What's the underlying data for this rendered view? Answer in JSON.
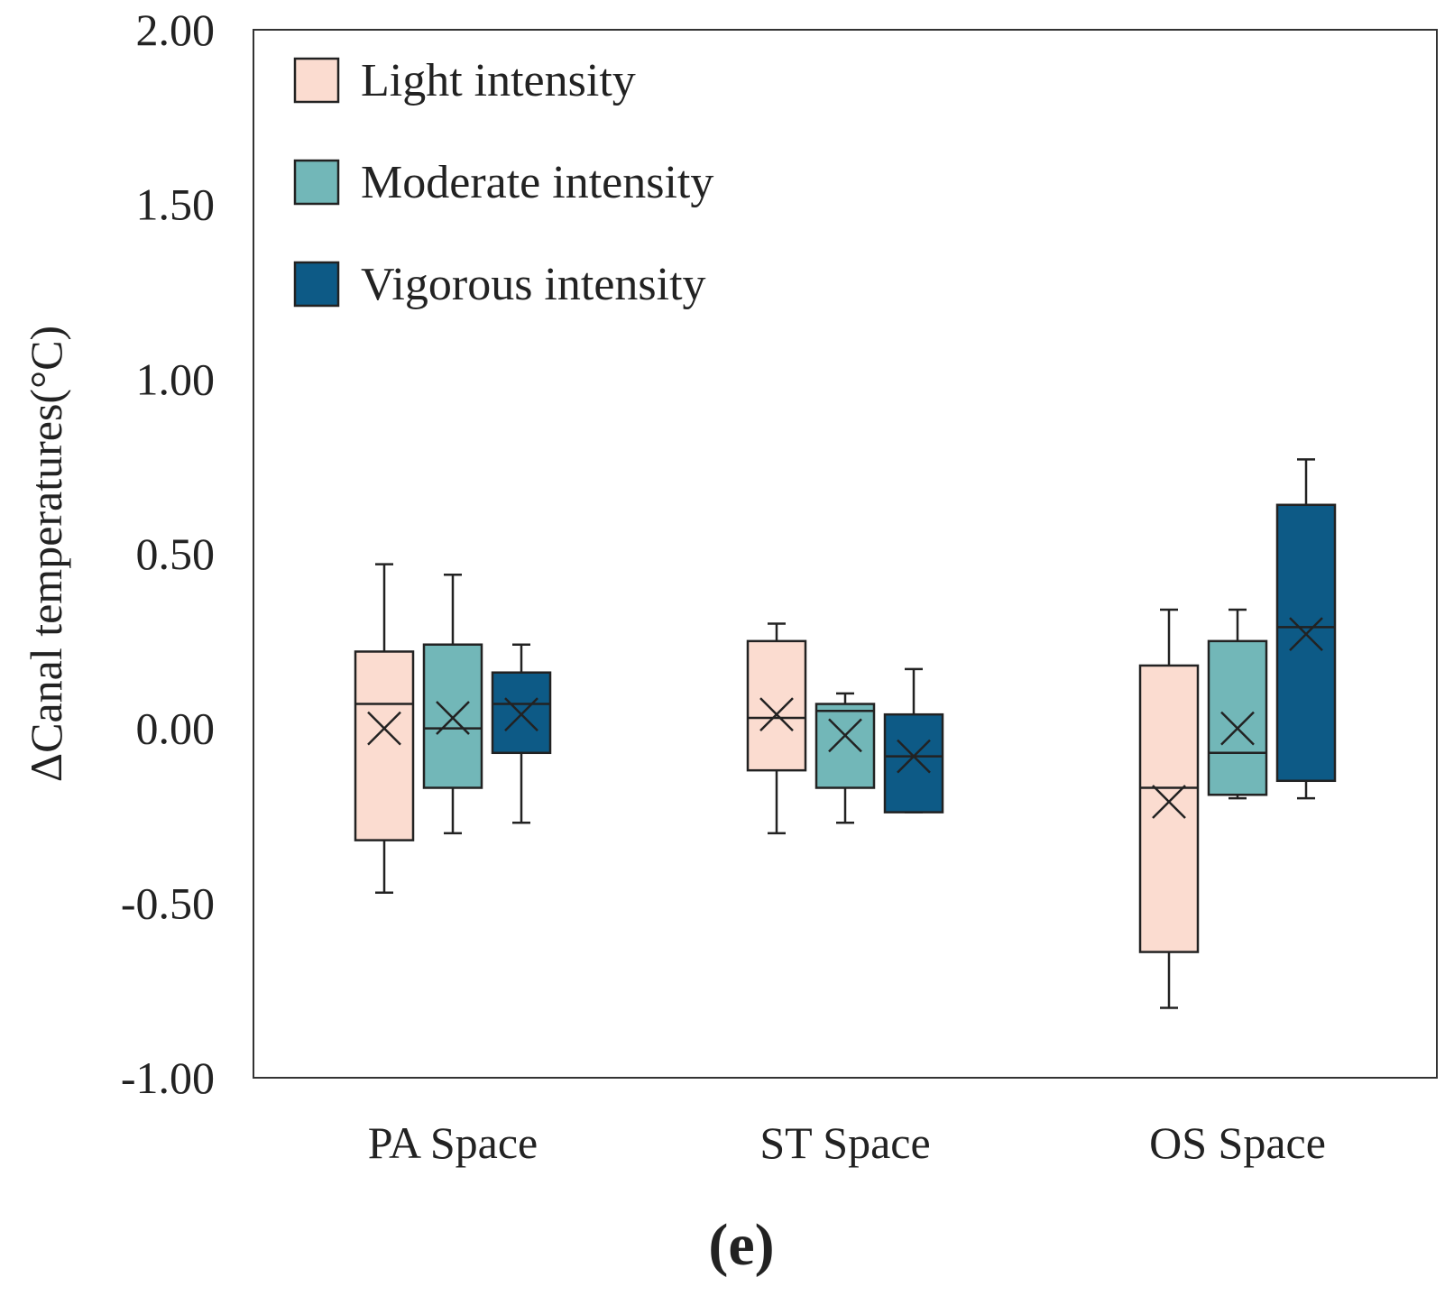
{
  "chart_data": {
    "type": "box",
    "title": "",
    "panel_label": "(e)",
    "xlabel": "",
    "ylabel": "ΔCanal temperatures(°C)",
    "ylim": [
      -1.0,
      2.0
    ],
    "yticks": [
      -1.0,
      -0.5,
      0.0,
      0.5,
      1.0,
      1.5,
      2.0
    ],
    "ytick_labels": [
      "-1.00",
      "-0.50",
      "0.00",
      "0.50",
      "1.00",
      "1.50",
      "2.00"
    ],
    "categories": [
      "PA Space",
      "ST Space",
      "OS Space"
    ],
    "legend_position": "top-left",
    "series": [
      {
        "name": "Light intensity",
        "color": "#fbdcd0",
        "boxes": [
          {
            "whisker_low": -0.47,
            "q1": -0.32,
            "median": 0.07,
            "q3": 0.22,
            "whisker_high": 0.47,
            "mean": 0.0
          },
          {
            "whisker_low": -0.3,
            "q1": -0.12,
            "median": 0.03,
            "q3": 0.25,
            "whisker_high": 0.3,
            "mean": 0.04
          },
          {
            "whisker_low": -0.8,
            "q1": -0.64,
            "median": -0.17,
            "q3": 0.18,
            "whisker_high": 0.34,
            "mean": -0.21
          }
        ]
      },
      {
        "name": "Moderate intensity",
        "color": "#72b7b8",
        "boxes": [
          {
            "whisker_low": -0.3,
            "q1": -0.17,
            "median": 0.0,
            "q3": 0.24,
            "whisker_high": 0.44,
            "mean": 0.03
          },
          {
            "whisker_low": -0.27,
            "q1": -0.17,
            "median": 0.05,
            "q3": 0.07,
            "whisker_high": 0.1,
            "mean": -0.02
          },
          {
            "whisker_low": -0.2,
            "q1": -0.19,
            "median": -0.07,
            "q3": 0.25,
            "whisker_high": 0.34,
            "mean": 0.0
          }
        ]
      },
      {
        "name": "Vigorous intensity",
        "color": "#0d5a86",
        "boxes": [
          {
            "whisker_low": -0.27,
            "q1": -0.07,
            "median": 0.07,
            "q3": 0.16,
            "whisker_high": 0.24,
            "mean": 0.04
          },
          {
            "whisker_low": -0.24,
            "q1": -0.24,
            "median": -0.08,
            "q3": 0.04,
            "whisker_high": 0.17,
            "mean": -0.08
          },
          {
            "whisker_low": -0.2,
            "q1": -0.15,
            "median": 0.29,
            "q3": 0.64,
            "whisker_high": 0.77,
            "mean": 0.27
          }
        ]
      }
    ]
  }
}
